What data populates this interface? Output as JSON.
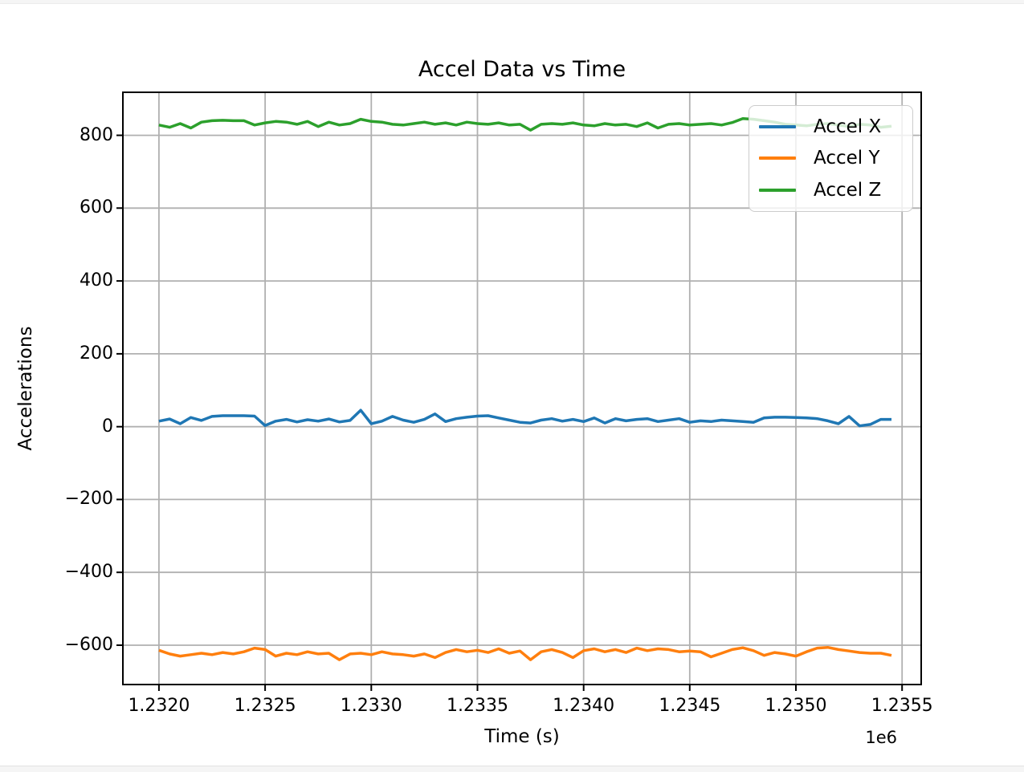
{
  "chart_data": {
    "type": "line",
    "title": "Accel Data vs Time",
    "xlabel": "Time (s)",
    "ylabel": "Accelerations",
    "x_offset_label": "1e6",
    "grid": true,
    "legend_position": "upper right",
    "xlim": [
      1231830,
      1235590
    ],
    "ylim": [
      -708,
      918
    ],
    "x_ticks": [
      {
        "value": 1232000,
        "label": "1.2320"
      },
      {
        "value": 1232500,
        "label": "1.2325"
      },
      {
        "value": 1233000,
        "label": "1.2330"
      },
      {
        "value": 1233500,
        "label": "1.2335"
      },
      {
        "value": 1234000,
        "label": "1.2340"
      },
      {
        "value": 1234500,
        "label": "1.2345"
      },
      {
        "value": 1235000,
        "label": "1.2350"
      },
      {
        "value": 1235500,
        "label": "1.2355"
      }
    ],
    "y_ticks": [
      {
        "value": 800,
        "label": "800"
      },
      {
        "value": 600,
        "label": "600"
      },
      {
        "value": 400,
        "label": "400"
      },
      {
        "value": 200,
        "label": "200"
      },
      {
        "value": 0,
        "label": "0"
      },
      {
        "value": -200,
        "label": "−200"
      },
      {
        "value": -400,
        "label": "−400"
      },
      {
        "value": -600,
        "label": "−600"
      }
    ],
    "x": [
      1232000,
      1232050,
      1232100,
      1232150,
      1232200,
      1232250,
      1232300,
      1232350,
      1232400,
      1232450,
      1232500,
      1232550,
      1232600,
      1232650,
      1232700,
      1232750,
      1232800,
      1232850,
      1232900,
      1232950,
      1233000,
      1233050,
      1233100,
      1233150,
      1233200,
      1233250,
      1233300,
      1233350,
      1233400,
      1233450,
      1233500,
      1233550,
      1233600,
      1233650,
      1233700,
      1233750,
      1233800,
      1233850,
      1233900,
      1233950,
      1234000,
      1234050,
      1234100,
      1234150,
      1234200,
      1234250,
      1234300,
      1234350,
      1234400,
      1234450,
      1234500,
      1234550,
      1234600,
      1234650,
      1234700,
      1234750,
      1234800,
      1234850,
      1234900,
      1234950,
      1235000,
      1235050,
      1235100,
      1235150,
      1235200,
      1235250,
      1235300,
      1235350,
      1235400,
      1235450
    ],
    "series": [
      {
        "name": "Accel X",
        "color": "#1f77b4",
        "values": [
          15,
          21,
          8,
          25,
          17,
          28,
          30,
          30,
          30,
          29,
          3,
          15,
          20,
          13,
          19,
          15,
          21,
          13,
          17,
          45,
          8,
          15,
          28,
          18,
          12,
          20,
          35,
          14,
          22,
          26,
          29,
          30,
          24,
          18,
          12,
          10,
          18,
          22,
          15,
          20,
          14,
          24,
          10,
          22,
          16,
          20,
          22,
          14,
          18,
          22,
          12,
          16,
          14,
          18,
          16,
          14,
          12,
          24,
          26,
          26,
          25,
          24,
          22,
          16,
          8,
          28,
          2,
          6,
          20,
          20
        ]
      },
      {
        "name": "Accel Y",
        "color": "#ff7f0e",
        "values": [
          -614,
          -624,
          -630,
          -626,
          -622,
          -626,
          -620,
          -624,
          -618,
          -608,
          -612,
          -630,
          -622,
          -626,
          -618,
          -624,
          -622,
          -640,
          -624,
          -622,
          -626,
          -618,
          -624,
          -626,
          -630,
          -624,
          -634,
          -620,
          -612,
          -618,
          -614,
          -620,
          -610,
          -622,
          -616,
          -640,
          -618,
          -612,
          -620,
          -634,
          -615,
          -610,
          -618,
          -612,
          -620,
          -608,
          -615,
          -610,
          -612,
          -618,
          -616,
          -618,
          -632,
          -622,
          -612,
          -607,
          -615,
          -628,
          -620,
          -624,
          -630,
          -618,
          -608,
          -606,
          -612,
          -616,
          -620,
          -622,
          -622,
          -628
        ]
      },
      {
        "name": "Accel Z",
        "color": "#2ca02c",
        "values": [
          828,
          822,
          832,
          820,
          836,
          840,
          841,
          840,
          840,
          828,
          834,
          838,
          836,
          830,
          838,
          824,
          836,
          828,
          832,
          844,
          838,
          836,
          830,
          828,
          832,
          836,
          830,
          834,
          828,
          836,
          832,
          830,
          834,
          828,
          830,
          814,
          830,
          832,
          830,
          834,
          828,
          826,
          832,
          828,
          830,
          824,
          834,
          820,
          830,
          832,
          828,
          830,
          832,
          828,
          835,
          846,
          844,
          840,
          836,
          830,
          828,
          826,
          830,
          832,
          828,
          824,
          830,
          828,
          822,
          825
        ]
      }
    ],
    "grid_color": "#b0b0b0",
    "spine_color": "#000000",
    "legend_border_color": "#cccccc"
  }
}
